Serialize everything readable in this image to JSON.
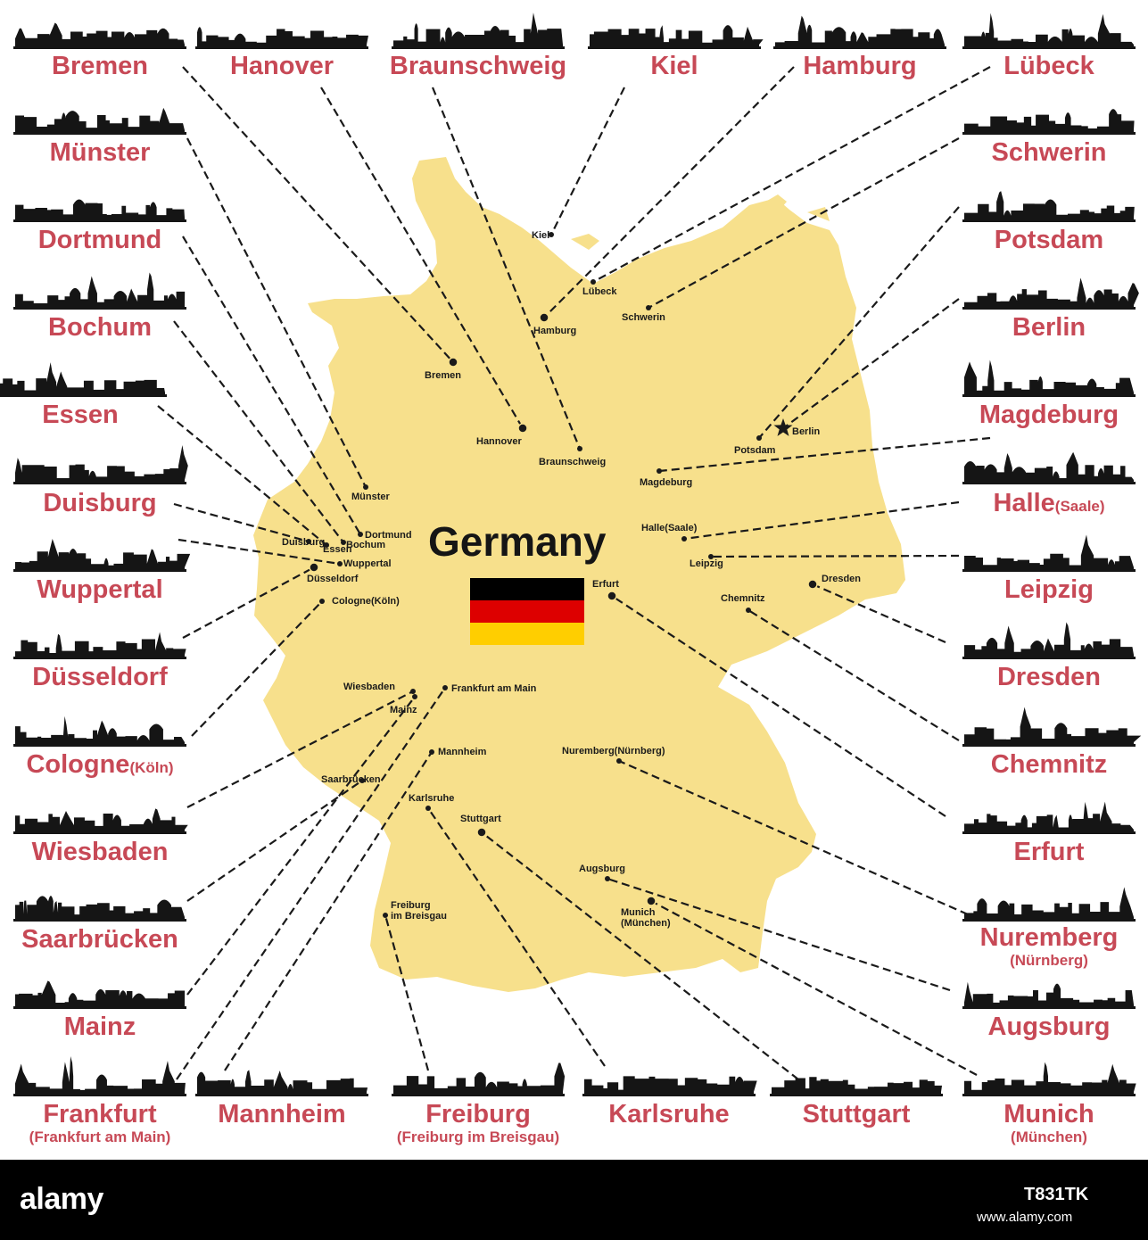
{
  "map_title": "Germany",
  "colors": {
    "land": "#f7e08c",
    "label": "#c74956",
    "ink": "#151515",
    "flag": [
      "#000000",
      "#dd0000",
      "#ffce00"
    ]
  },
  "skyline_labels": [
    {
      "id": "bremen",
      "label": "Bremen"
    },
    {
      "id": "hanover",
      "label": "Hanover"
    },
    {
      "id": "braunschweig",
      "label": "Braunschweig"
    },
    {
      "id": "kiel",
      "label": "Kiel"
    },
    {
      "id": "hamburg",
      "label": "Hamburg"
    },
    {
      "id": "luebeck",
      "label": "Lübeck"
    },
    {
      "id": "muenster",
      "label": "Münster"
    },
    {
      "id": "schwerin",
      "label": "Schwerin"
    },
    {
      "id": "dortmund",
      "label": "Dortmund"
    },
    {
      "id": "potsdam",
      "label": "Potsdam"
    },
    {
      "id": "bochum",
      "label": "Bochum"
    },
    {
      "id": "berlin",
      "label": "Berlin"
    },
    {
      "id": "essen",
      "label": "Essen"
    },
    {
      "id": "magdeburg",
      "label": "Magdeburg"
    },
    {
      "id": "duisburg",
      "label": "Duisburg"
    },
    {
      "id": "halle",
      "label": "Halle",
      "suffix": "(Saale)"
    },
    {
      "id": "wuppertal",
      "label": "Wuppertal"
    },
    {
      "id": "leipzig",
      "label": "Leipzig"
    },
    {
      "id": "duesseldorf",
      "label": "Düsseldorf"
    },
    {
      "id": "dresden",
      "label": "Dresden"
    },
    {
      "id": "cologne",
      "label": "Cologne",
      "suffix": "(Köln)"
    },
    {
      "id": "chemnitz",
      "label": "Chemnitz"
    },
    {
      "id": "wiesbaden",
      "label": "Wiesbaden"
    },
    {
      "id": "erfurt",
      "label": "Erfurt"
    },
    {
      "id": "saarbruecken",
      "label": "Saarbrücken"
    },
    {
      "id": "nuremberg",
      "label": "Nuremberg",
      "sub": "(Nürnberg)"
    },
    {
      "id": "mainz",
      "label": "Mainz"
    },
    {
      "id": "augsburg",
      "label": "Augsburg"
    },
    {
      "id": "frankfurt",
      "label": "Frankfurt",
      "sub": "(Frankfurt am Main)"
    },
    {
      "id": "mannheim",
      "label": "Mannheim"
    },
    {
      "id": "freiburg",
      "label": "Freiburg",
      "sub": "(Freiburg im Breisgau)"
    },
    {
      "id": "karlsruhe",
      "label": "Karlsruhe"
    },
    {
      "id": "stuttgart",
      "label": "Stuttgart"
    },
    {
      "id": "munich",
      "label": "Munich",
      "sub": "(München)"
    }
  ],
  "map_cities": [
    {
      "id": "kiel",
      "label": "Kiel"
    },
    {
      "id": "luebeck",
      "label": "Lübeck"
    },
    {
      "id": "hamburg",
      "label": "Hamburg"
    },
    {
      "id": "schwerin",
      "label": "Schwerin"
    },
    {
      "id": "bremen",
      "label": "Bremen"
    },
    {
      "id": "berlin",
      "label": "Berlin"
    },
    {
      "id": "potsdam",
      "label": "Potsdam"
    },
    {
      "id": "hannover",
      "label": "Hannover"
    },
    {
      "id": "braunschweig",
      "label": "Braunschweig"
    },
    {
      "id": "magdeburg",
      "label": "Magdeburg"
    },
    {
      "id": "muenster",
      "label": "Münster"
    },
    {
      "id": "dortmund",
      "label": "Dortmund"
    },
    {
      "id": "duisburg",
      "label": "Duisburg"
    },
    {
      "id": "essen",
      "label": "Essen"
    },
    {
      "id": "bochum",
      "label": "Bochum"
    },
    {
      "id": "wuppertal",
      "label": "Wuppertal"
    },
    {
      "id": "duesseldorf",
      "label": "Düsseldorf"
    },
    {
      "id": "cologne",
      "label": "Cologne(Köln)"
    },
    {
      "id": "halle",
      "label": "Halle(Saale)"
    },
    {
      "id": "leipzig",
      "label": "Leipzig"
    },
    {
      "id": "dresden",
      "label": "Dresden"
    },
    {
      "id": "chemnitz",
      "label": "Chemnitz"
    },
    {
      "id": "erfurt",
      "label": "Erfurt"
    },
    {
      "id": "wiesbaden",
      "label": "Wiesbaden"
    },
    {
      "id": "mainz",
      "label": "Mainz"
    },
    {
      "id": "frankfurt",
      "label": "Frankfurt am Main"
    },
    {
      "id": "mannheim",
      "label": "Mannheim"
    },
    {
      "id": "nuremberg",
      "label": "Nuremberg(Nürnberg)"
    },
    {
      "id": "saarbruecken",
      "label": "Saarbrücken"
    },
    {
      "id": "karlsruhe",
      "label": "Karlsruhe"
    },
    {
      "id": "stuttgart",
      "label": "Stuttgart"
    },
    {
      "id": "augsburg",
      "label": "Augsburg"
    },
    {
      "id": "munich",
      "label": "Munich",
      "sub": "(München)"
    },
    {
      "id": "freiburg",
      "label": "Freiburg",
      "sub": "im Breisgau"
    }
  ],
  "footer": {
    "logo": "alamy",
    "image_id": "T831TK",
    "url": "www.alamy.com"
  }
}
